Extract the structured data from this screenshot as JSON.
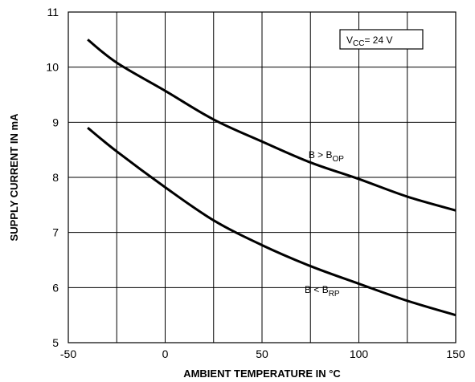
{
  "chart_data": {
    "type": "line",
    "xlabel": "AMBIENT TEMPERATURE IN °C",
    "ylabel": "SUPPLY CURRENT IN mA",
    "xlim": [
      -50,
      150
    ],
    "ylim": [
      5,
      11
    ],
    "xticks": [
      -50,
      0,
      50,
      100,
      150
    ],
    "yticks": [
      5,
      6,
      7,
      8,
      9,
      10,
      11
    ],
    "grid": true,
    "series": [
      {
        "name": "B > BOP",
        "label_main": "B > B",
        "label_sub": "OP",
        "x": [
          -40,
          -25,
          0,
          25,
          50,
          75,
          100,
          125,
          150
        ],
        "y": [
          10.5,
          10.08,
          9.57,
          9.05,
          8.65,
          8.27,
          7.97,
          7.65,
          7.4
        ]
      },
      {
        "name": "B < BRP",
        "label_main": "B < B",
        "label_sub": "RP",
        "x": [
          -40,
          -25,
          0,
          25,
          50,
          75,
          100,
          125,
          150
        ],
        "y": [
          8.9,
          8.47,
          7.82,
          7.22,
          6.77,
          6.39,
          6.07,
          5.76,
          5.5
        ]
      }
    ],
    "annotation": {
      "main": "V",
      "sub": "CC",
      "rest": "= 24 V"
    }
  }
}
